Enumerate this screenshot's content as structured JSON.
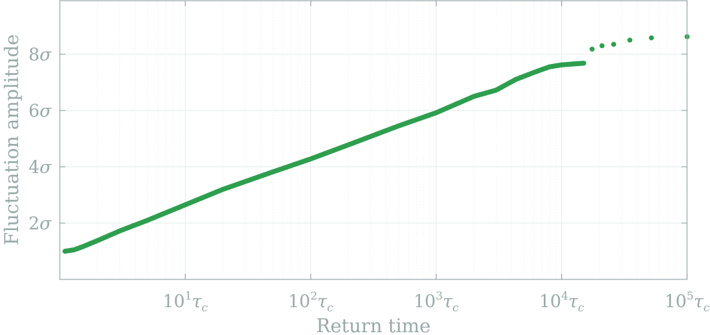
{
  "chart_data": {
    "type": "scatter",
    "xlabel": "Return time",
    "ylabel": "Fluctuation amplitude",
    "xscale": "log",
    "xlim": [
      1,
      100000
    ],
    "ylim": [
      0,
      9.9
    ],
    "grid": true,
    "marker_color": "#2e9e4f",
    "x_ticks": [
      {
        "value": 10,
        "base": "10",
        "exp": "1",
        "unit": "τ",
        "sub": "c"
      },
      {
        "value": 100,
        "base": "10",
        "exp": "2",
        "unit": "τ",
        "sub": "c"
      },
      {
        "value": 1000,
        "base": "10",
        "exp": "3",
        "unit": "τ",
        "sub": "c"
      },
      {
        "value": 10000,
        "base": "10",
        "exp": "4",
        "unit": "τ",
        "sub": "c"
      },
      {
        "value": 100000,
        "base": "10",
        "exp": "5",
        "unit": "τ",
        "sub": "c"
      }
    ],
    "y_ticks": [
      {
        "value": 2,
        "num": "2",
        "sym": "σ"
      },
      {
        "value": 4,
        "num": "4",
        "sym": "σ"
      },
      {
        "value": 6,
        "num": "6",
        "sym": "σ"
      },
      {
        "value": 8,
        "num": "8",
        "sym": "σ"
      }
    ],
    "curve": {
      "note_points": [
        [
          1.1,
          1.0
        ],
        [
          1.3,
          1.05
        ],
        [
          1.5,
          1.15
        ],
        [
          2,
          1.38
        ],
        [
          3,
          1.72
        ],
        [
          5,
          2.1
        ],
        [
          10,
          2.65
        ],
        [
          20,
          3.2
        ],
        [
          50,
          3.82
        ],
        [
          100,
          4.28
        ],
        [
          200,
          4.78
        ],
        [
          500,
          5.45
        ],
        [
          1000,
          5.92
        ],
        [
          2000,
          6.5
        ],
        [
          3000,
          6.72
        ],
        [
          4300,
          7.1
        ],
        [
          6000,
          7.35
        ],
        [
          8000,
          7.55
        ],
        [
          10000,
          7.62
        ],
        [
          15000,
          7.68
        ]
      ]
    },
    "tail_points": [
      {
        "x": 17500,
        "y": 8.18
      },
      {
        "x": 21000,
        "y": 8.3
      },
      {
        "x": 26000,
        "y": 8.35
      },
      {
        "x": 35000,
        "y": 8.5
      },
      {
        "x": 52000,
        "y": 8.58
      },
      {
        "x": 100000,
        "y": 8.62
      }
    ],
    "series_sample_count": 420
  }
}
